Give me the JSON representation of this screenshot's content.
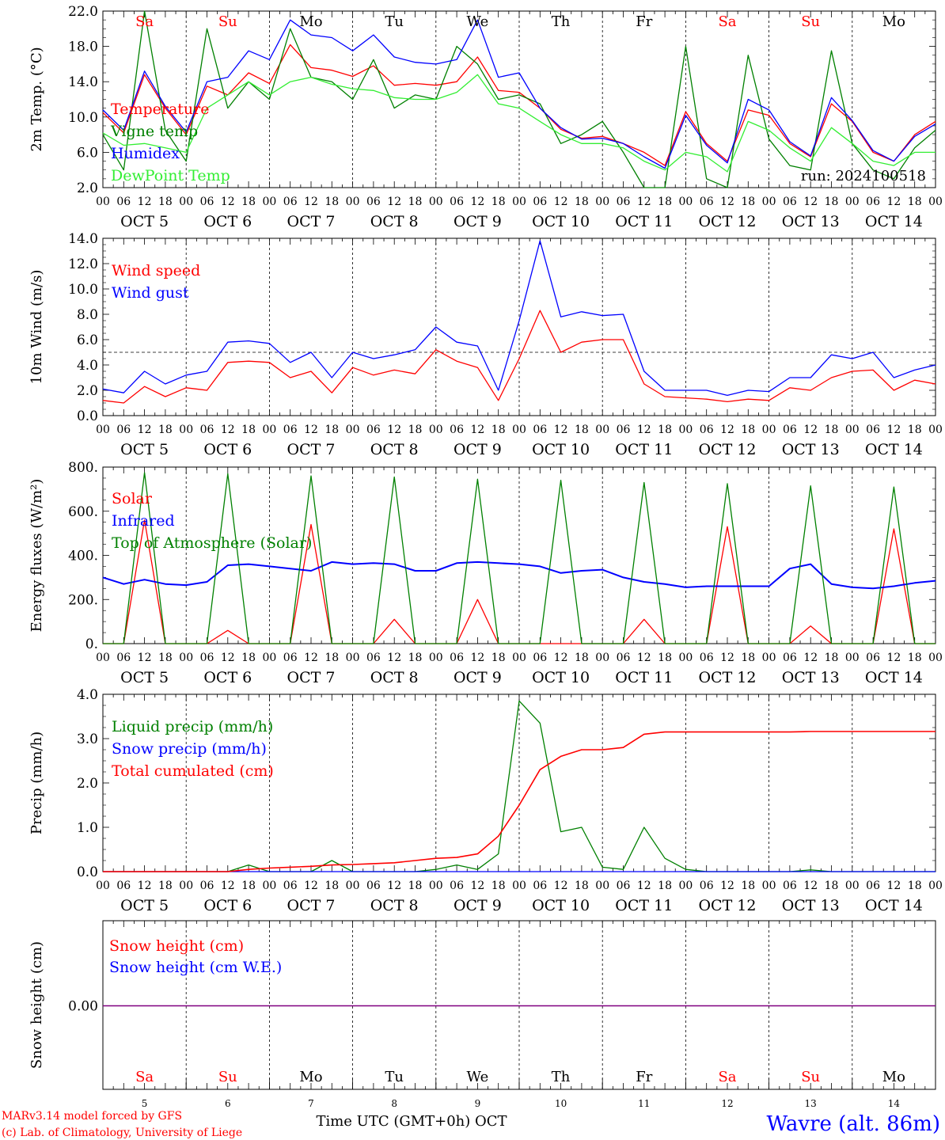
{
  "colors": {
    "red": "#ff0000",
    "green": "#008000",
    "blue": "#0000ff",
    "lightgreen": "#33ee33",
    "black": "#000000",
    "purple": "#800080"
  },
  "x_axis": {
    "hour_ticks": [
      "00",
      "06",
      "12",
      "18"
    ],
    "final_tick": "00",
    "days": [
      "OCT  5",
      "OCT  6",
      "OCT  7",
      "OCT  8",
      "OCT  9",
      "OCT 10",
      "OCT 11",
      "OCT 12",
      "OCT 13",
      "OCT 14"
    ],
    "weekdays": [
      "Sa",
      "Su",
      "Mo",
      "Tu",
      "We",
      "Th",
      "Fr",
      "Sa",
      "Su",
      "Mo"
    ],
    "weekday_colors": [
      "#ff0000",
      "#ff0000",
      "#000000",
      "#000000",
      "#000000",
      "#000000",
      "#000000",
      "#ff0000",
      "#ff0000",
      "#000000"
    ],
    "day_numbers": [
      "5",
      "6",
      "7",
      "8",
      "9",
      "10",
      "11",
      "12",
      "13",
      "14"
    ],
    "footer_label": "Time UTC (GMT+0h) OCT"
  },
  "footer": {
    "credit_line1": "MARv3.14 model forced by GFS",
    "credit_line2": "(c) Lab. of Climatology, University of Liege",
    "station": "Wavre (alt. 86m)"
  },
  "chart_data": [
    {
      "type": "line",
      "ylabel": "2m Temp. (°C)",
      "ylim": [
        2,
        22
      ],
      "yticks": [
        "2.0",
        "6.0",
        "10.0",
        "14.0",
        "18.0",
        "22.0"
      ],
      "run_label": "run: 2024100518",
      "legend": [
        "Temperature",
        "Vigne temp",
        "Humidex",
        "DewPoint Temp"
      ],
      "x_hours_since_oct5_00": [
        0,
        6,
        12,
        18,
        24,
        30,
        36,
        42,
        48,
        54,
        60,
        66,
        72,
        78,
        84,
        90,
        96,
        102,
        108,
        114,
        120,
        126,
        132,
        138,
        144,
        150,
        156,
        162,
        168,
        174,
        180,
        186,
        192,
        198,
        204,
        210,
        216,
        222,
        228,
        234,
        240
      ],
      "series": [
        {
          "name": "Temperature",
          "color": "#ff0000",
          "values": [
            10.5,
            8.2,
            14.8,
            11.0,
            8.0,
            13.5,
            12.5,
            15.0,
            13.8,
            18.2,
            15.6,
            15.3,
            14.6,
            15.8,
            13.6,
            13.8,
            13.6,
            14.0,
            16.8,
            13.0,
            12.8,
            11.0,
            8.6,
            7.6,
            7.8,
            7.0,
            6.0,
            4.5,
            10.6,
            7.0,
            5.0,
            10.8,
            10.2,
            7.0,
            5.5,
            11.5,
            9.5,
            6.0,
            5.0,
            8.0,
            9.5
          ]
        },
        {
          "name": "Vigne temp",
          "color": "#008000",
          "values": [
            8.0,
            4.0,
            22.0,
            8.5,
            5.0,
            20.0,
            11.0,
            14.0,
            12.0,
            20.0,
            14.5,
            14.0,
            12.0,
            16.5,
            11.0,
            12.5,
            12.0,
            18.0,
            16.0,
            12.0,
            12.5,
            11.5,
            7.0,
            8.0,
            9.5,
            6.0,
            0.0,
            0.0,
            18.0,
            3.0,
            0.0,
            17.0,
            7.5,
            4.5,
            4.0,
            17.5,
            7.0,
            4.0,
            3.0,
            6.5,
            8.5
          ]
        },
        {
          "name": "Humidex",
          "color": "#0000ff",
          "values": [
            10.8,
            8.5,
            15.2,
            11.2,
            8.3,
            14.0,
            14.5,
            17.5,
            16.5,
            21.0,
            19.3,
            19.0,
            17.5,
            19.3,
            16.8,
            16.2,
            16.0,
            16.5,
            21.0,
            14.5,
            15.0,
            11.0,
            8.8,
            7.5,
            7.6,
            7.0,
            5.5,
            4.2,
            10.2,
            6.8,
            4.8,
            12.0,
            10.8,
            7.2,
            5.6,
            12.2,
            9.6,
            6.2,
            5.0,
            7.8,
            9.2
          ]
        },
        {
          "name": "DewPoint Temp",
          "color": "#33ee33",
          "values": [
            8.2,
            6.8,
            7.0,
            6.5,
            6.0,
            11.0,
            12.5,
            14.0,
            12.5,
            14.0,
            14.5,
            13.7,
            13.2,
            13.0,
            12.2,
            12.0,
            12.0,
            12.8,
            14.8,
            11.5,
            11.0,
            9.5,
            8.0,
            7.0,
            7.0,
            6.5,
            5.0,
            4.0,
            6.0,
            5.5,
            3.8,
            9.5,
            8.5,
            6.5,
            5.0,
            8.8,
            7.0,
            5.0,
            4.5,
            6.0,
            6.0
          ]
        }
      ]
    },
    {
      "type": "line",
      "ylabel": "10m Wind (m/s)",
      "ylim": [
        0,
        14
      ],
      "yticks": [
        "0.0",
        "2.0",
        "4.0",
        "6.0",
        "8.0",
        "10.0",
        "12.0",
        "14.0"
      ],
      "reference_line": 5,
      "legend": [
        "Wind speed",
        "Wind gust"
      ],
      "x_hours_since_oct5_00": [
        0,
        6,
        12,
        18,
        24,
        30,
        36,
        42,
        48,
        54,
        60,
        66,
        72,
        78,
        84,
        90,
        96,
        102,
        108,
        114,
        120,
        126,
        132,
        138,
        144,
        150,
        156,
        162,
        168,
        174,
        180,
        186,
        192,
        198,
        204,
        210,
        216,
        222,
        228,
        234,
        240
      ],
      "series": [
        {
          "name": "Wind speed",
          "color": "#ff0000",
          "values": [
            1.2,
            1.0,
            2.3,
            1.5,
            2.2,
            2.0,
            4.2,
            4.3,
            4.2,
            3.0,
            3.5,
            1.8,
            3.8,
            3.2,
            3.6,
            3.3,
            5.2,
            4.3,
            3.8,
            1.2,
            4.5,
            8.3,
            5.0,
            5.8,
            6.0,
            6.0,
            2.5,
            1.5,
            1.4,
            1.3,
            1.1,
            1.3,
            1.2,
            2.2,
            2.0,
            3.0,
            3.5,
            3.6,
            2.0,
            2.8,
            2.5
          ]
        },
        {
          "name": "Wind gust",
          "color": "#0000ff",
          "values": [
            2.1,
            1.8,
            3.5,
            2.5,
            3.2,
            3.5,
            5.8,
            5.9,
            5.7,
            4.2,
            5.0,
            3.0,
            5.0,
            4.5,
            4.8,
            5.2,
            7.0,
            5.8,
            5.5,
            2.0,
            7.5,
            13.8,
            7.8,
            8.2,
            7.9,
            8.0,
            3.5,
            2.0,
            2.0,
            2.0,
            1.6,
            2.0,
            1.9,
            3.0,
            3.0,
            4.8,
            4.5,
            5.0,
            3.0,
            3.6,
            4.0
          ]
        }
      ]
    },
    {
      "type": "line",
      "ylabel": "Energy fluxes (W/m²)",
      "ylim": [
        0,
        800
      ],
      "yticks": [
        "0.",
        "200.",
        "400.",
        "600.",
        "800."
      ],
      "legend": [
        "Solar",
        "Infrared",
        "Top of Atmosphere (Solar)"
      ],
      "x_hours_since_oct5_00": [
        0,
        6,
        12,
        18,
        24,
        30,
        36,
        42,
        48,
        54,
        60,
        66,
        72,
        78,
        84,
        90,
        96,
        102,
        108,
        114,
        120,
        126,
        132,
        138,
        144,
        150,
        156,
        162,
        168,
        174,
        180,
        186,
        192,
        198,
        204,
        210,
        216,
        222,
        228,
        234,
        240
      ],
      "series": [
        {
          "name": "Solar",
          "color": "#ff0000",
          "values": [
            0,
            0,
            560,
            0,
            0,
            0,
            60,
            0,
            0,
            0,
            540,
            0,
            0,
            0,
            110,
            0,
            0,
            0,
            200,
            0,
            0,
            0,
            0,
            0,
            0,
            0,
            110,
            0,
            0,
            0,
            530,
            0,
            0,
            0,
            80,
            0,
            0,
            0,
            520,
            0,
            0
          ]
        },
        {
          "name": "Infrared",
          "color": "#0000ff",
          "values": [
            300,
            270,
            290,
            270,
            265,
            280,
            355,
            360,
            350,
            340,
            330,
            370,
            360,
            365,
            360,
            330,
            330,
            365,
            370,
            365,
            360,
            350,
            320,
            330,
            335,
            300,
            280,
            270,
            255,
            260,
            260,
            260,
            260,
            340,
            360,
            270,
            255,
            250,
            260,
            275,
            285
          ]
        },
        {
          "name": "Top of Atmosphere (Solar)",
          "color": "#008000",
          "values": [
            0,
            0,
            775,
            0,
            0,
            0,
            770,
            0,
            0,
            0,
            760,
            0,
            0,
            0,
            755,
            0,
            0,
            0,
            745,
            0,
            0,
            0,
            740,
            0,
            0,
            0,
            730,
            0,
            0,
            0,
            725,
            0,
            0,
            0,
            715,
            0,
            0,
            0,
            710,
            0,
            0
          ]
        }
      ]
    },
    {
      "type": "line",
      "ylabel": "Precip (mm/h)",
      "ylim": [
        0,
        4
      ],
      "yticks": [
        "0.0",
        "1.0",
        "2.0",
        "3.0",
        "4.0"
      ],
      "legend": [
        "Liquid precip (mm/h)",
        "Snow precip (mm/h)",
        "Total cumulated (cm)"
      ],
      "x_hours_since_oct5_00": [
        0,
        6,
        12,
        18,
        24,
        30,
        36,
        42,
        48,
        54,
        60,
        66,
        72,
        78,
        84,
        90,
        96,
        102,
        108,
        114,
        120,
        126,
        132,
        138,
        144,
        150,
        156,
        162,
        168,
        174,
        180,
        186,
        192,
        198,
        204,
        210,
        216,
        222,
        228,
        234,
        240
      ],
      "series": [
        {
          "name": "Liquid precip (mm/h)",
          "color": "#008000",
          "values": [
            0,
            0,
            0,
            0,
            0,
            0,
            0,
            0.15,
            0,
            0,
            0,
            0.25,
            0,
            0,
            0,
            0,
            0.05,
            0.15,
            0.05,
            0.4,
            3.85,
            3.35,
            0.9,
            1.0,
            0.1,
            0.05,
            1.0,
            0.3,
            0.05,
            0,
            0,
            0,
            0,
            0,
            0.04,
            0,
            0,
            0,
            0,
            0,
            0
          ]
        },
        {
          "name": "Snow precip (mm/h)",
          "color": "#0000ff",
          "values": [
            0,
            0,
            0,
            0,
            0,
            0,
            0,
            0,
            0,
            0,
            0,
            0,
            0,
            0,
            0,
            0,
            0,
            0,
            0,
            0,
            0,
            0,
            0,
            0,
            0,
            0,
            0,
            0,
            0,
            0,
            0,
            0,
            0,
            0,
            0,
            0,
            0,
            0,
            0,
            0,
            0
          ]
        },
        {
          "name": "Total cumulated (cm)",
          "color": "#ff0000",
          "values": [
            0,
            0,
            0,
            0,
            0,
            0,
            0,
            0.05,
            0.08,
            0.1,
            0.12,
            0.15,
            0.16,
            0.18,
            0.2,
            0.25,
            0.3,
            0.32,
            0.4,
            0.8,
            1.5,
            2.3,
            2.6,
            2.75,
            2.75,
            2.8,
            3.1,
            3.15,
            3.15,
            3.15,
            3.15,
            3.15,
            3.15,
            3.15,
            3.16,
            3.16,
            3.16,
            3.16,
            3.16,
            3.16,
            3.16
          ]
        }
      ]
    },
    {
      "type": "line",
      "ylabel": "Snow height (cm)",
      "yticks": [
        "0.00"
      ],
      "legend": [
        "Snow height (cm)",
        "Snow height (cm W.E.)"
      ],
      "x_hours_since_oct5_00": [
        0,
        240
      ],
      "series": [
        {
          "name": "Snow height (cm)",
          "color": "#ff0000",
          "values": [
            0,
            0
          ]
        },
        {
          "name": "Snow height (cm W.E.)",
          "color": "#0000ff",
          "values": [
            0,
            0
          ]
        }
      ]
    }
  ]
}
